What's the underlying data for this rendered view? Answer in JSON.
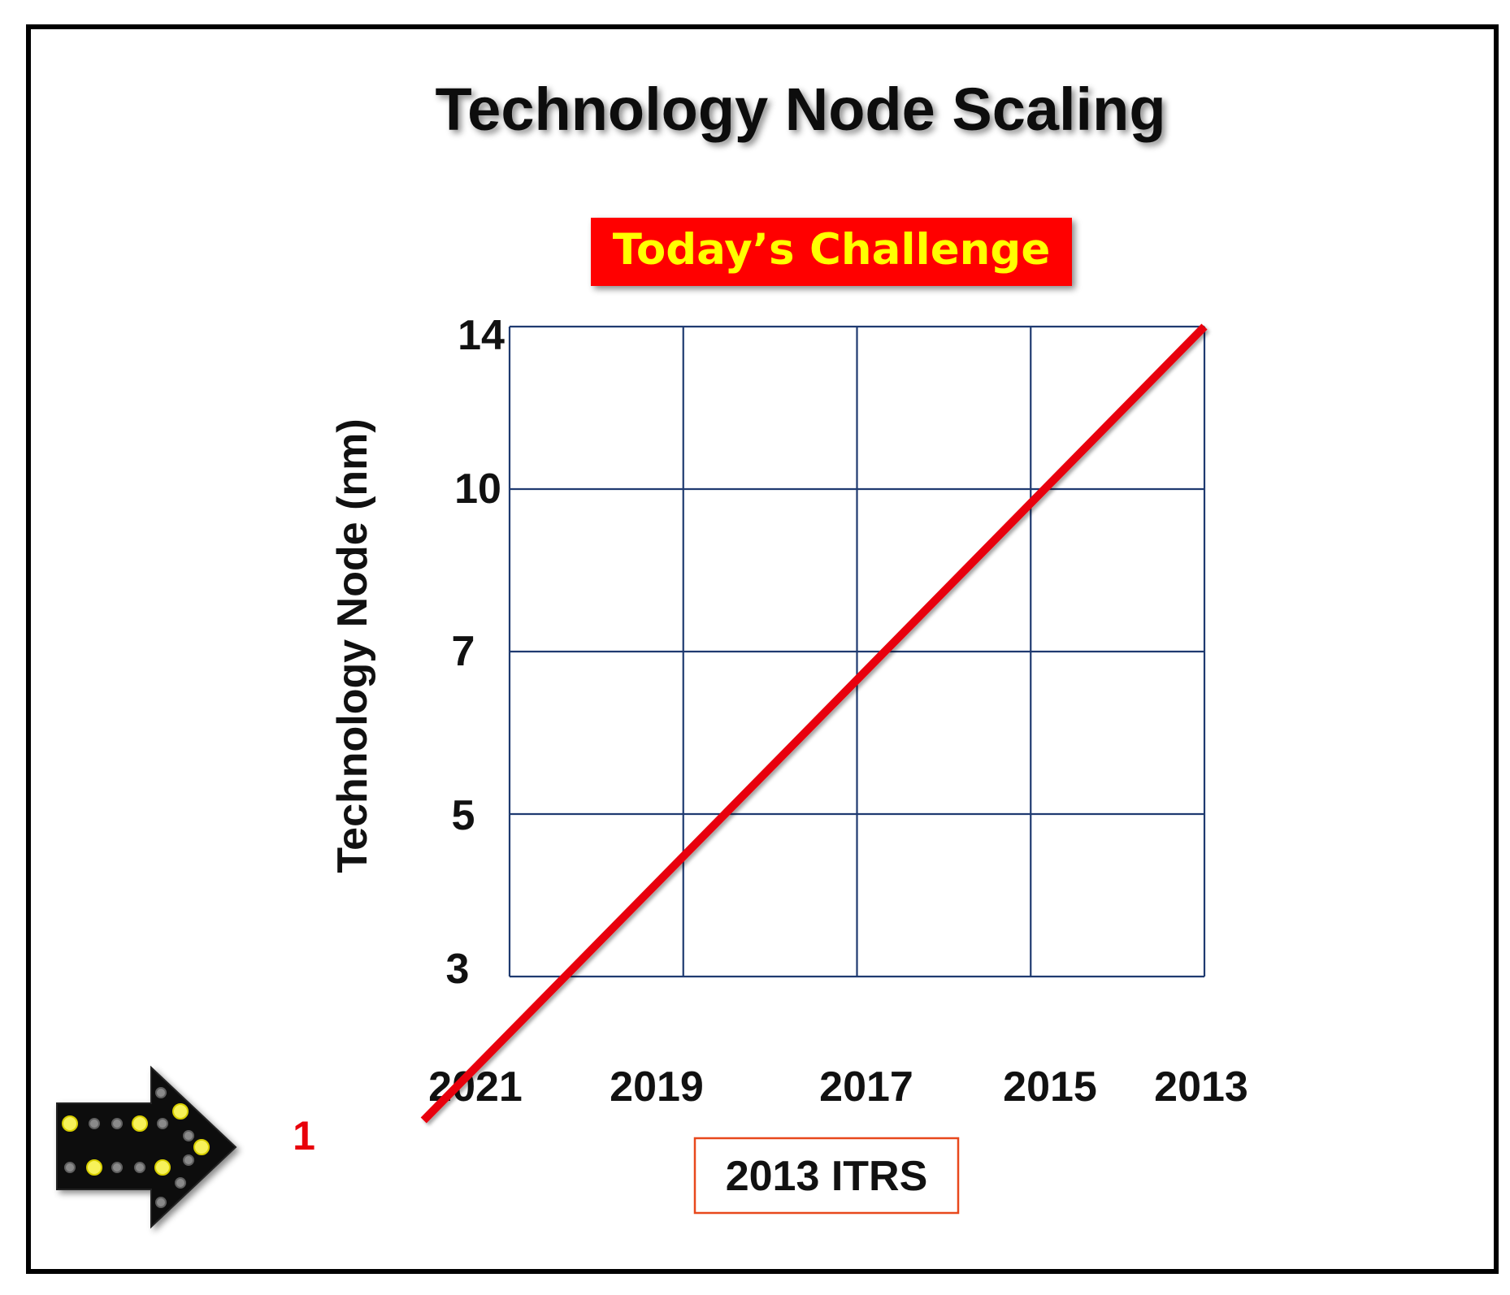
{
  "chart_data": {
    "type": "line",
    "title": "Technology Node Scaling",
    "banner": "Today’s Challenge",
    "ylabel": "Technology Node (nm)",
    "source_label": "2013 ITRS",
    "x_ticks": [
      "2021",
      "2019",
      "2017",
      "2015",
      "2013"
    ],
    "y_ticks": [
      "3",
      "5",
      "7",
      "10",
      "14"
    ],
    "extra_label": "1",
    "series": [
      {
        "points": [
          {
            "x": "2023",
            "y": 1
          },
          {
            "x": "2021",
            "y": 3
          },
          {
            "x": "2019",
            "y": 5
          },
          {
            "x": "2017",
            "y": 7
          },
          {
            "x": "2015",
            "y": 10
          },
          {
            "x": "2013",
            "y": 14
          }
        ]
      }
    ],
    "grid": true,
    "colors": {
      "line": "#e8000b",
      "grid": "#1f3a70",
      "banner_bg": "#ff0000",
      "banner_text": "#ffff00",
      "extra_label": "#e8000b",
      "source_border": "#e8481c"
    }
  }
}
